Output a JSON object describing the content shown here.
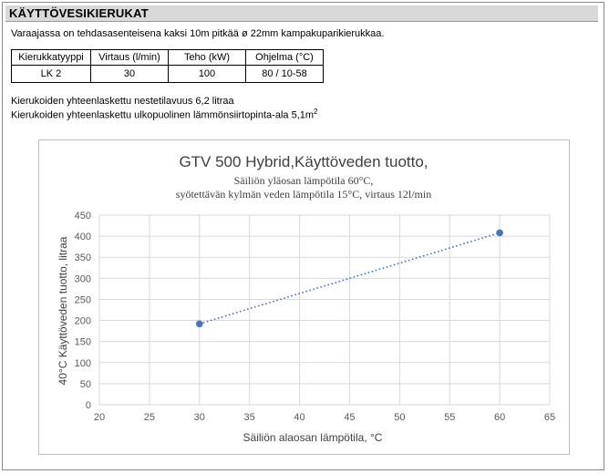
{
  "section": {
    "title": "KÄYTTÖVESIKIERUKAT"
  },
  "intro": "Varaajassa on tehdasasenteisena kaksi 10m pitkää ø 22mm kampakuparikierukkaa.",
  "spec_table": {
    "headers": [
      "Kierukkatyyppi",
      "Virtaus (l/min)",
      "Teho (kW)",
      "Ohjelma (°C)"
    ],
    "rows": [
      [
        "LK 2",
        "30",
        "100",
        "80 / 10-58"
      ]
    ]
  },
  "notes": {
    "volume": "Kierukoiden yhteenlaskettu nestetilavuus 6,2 litraa",
    "area_text": "Kierukoiden yhteenlaskettu ulkopuolinen lämmönsiirtopinta-ala 5,1m",
    "area_sup": "2"
  },
  "chart_data": {
    "type": "scatter",
    "title": "GTV 500 Hybrid,Käyttöveden tuotto,",
    "subtitle_line1": "Säiliön yläosan lämpötila 60°C,",
    "subtitle_line2": "syötettävän kylmän veden lämpötila 15°C, virtaus 12l/min",
    "xlabel": "Säiliön alaosan lämpötila, °C",
    "ylabel": "40°C Käyttöveden tuotto, litraa",
    "xlim": [
      20,
      65
    ],
    "ylim": [
      0,
      450
    ],
    "x_ticks": [
      20,
      25,
      30,
      35,
      40,
      45,
      50,
      55,
      60,
      65
    ],
    "y_ticks": [
      0,
      50,
      100,
      150,
      200,
      250,
      300,
      350,
      400,
      450
    ],
    "grid": true,
    "trendline": "linear, dotted",
    "x": [
      30,
      60
    ],
    "y": [
      192,
      408
    ],
    "colors": {
      "marker": "#4472c4",
      "trendline": "#4472c4",
      "grid": "#d9d9d9"
    }
  }
}
